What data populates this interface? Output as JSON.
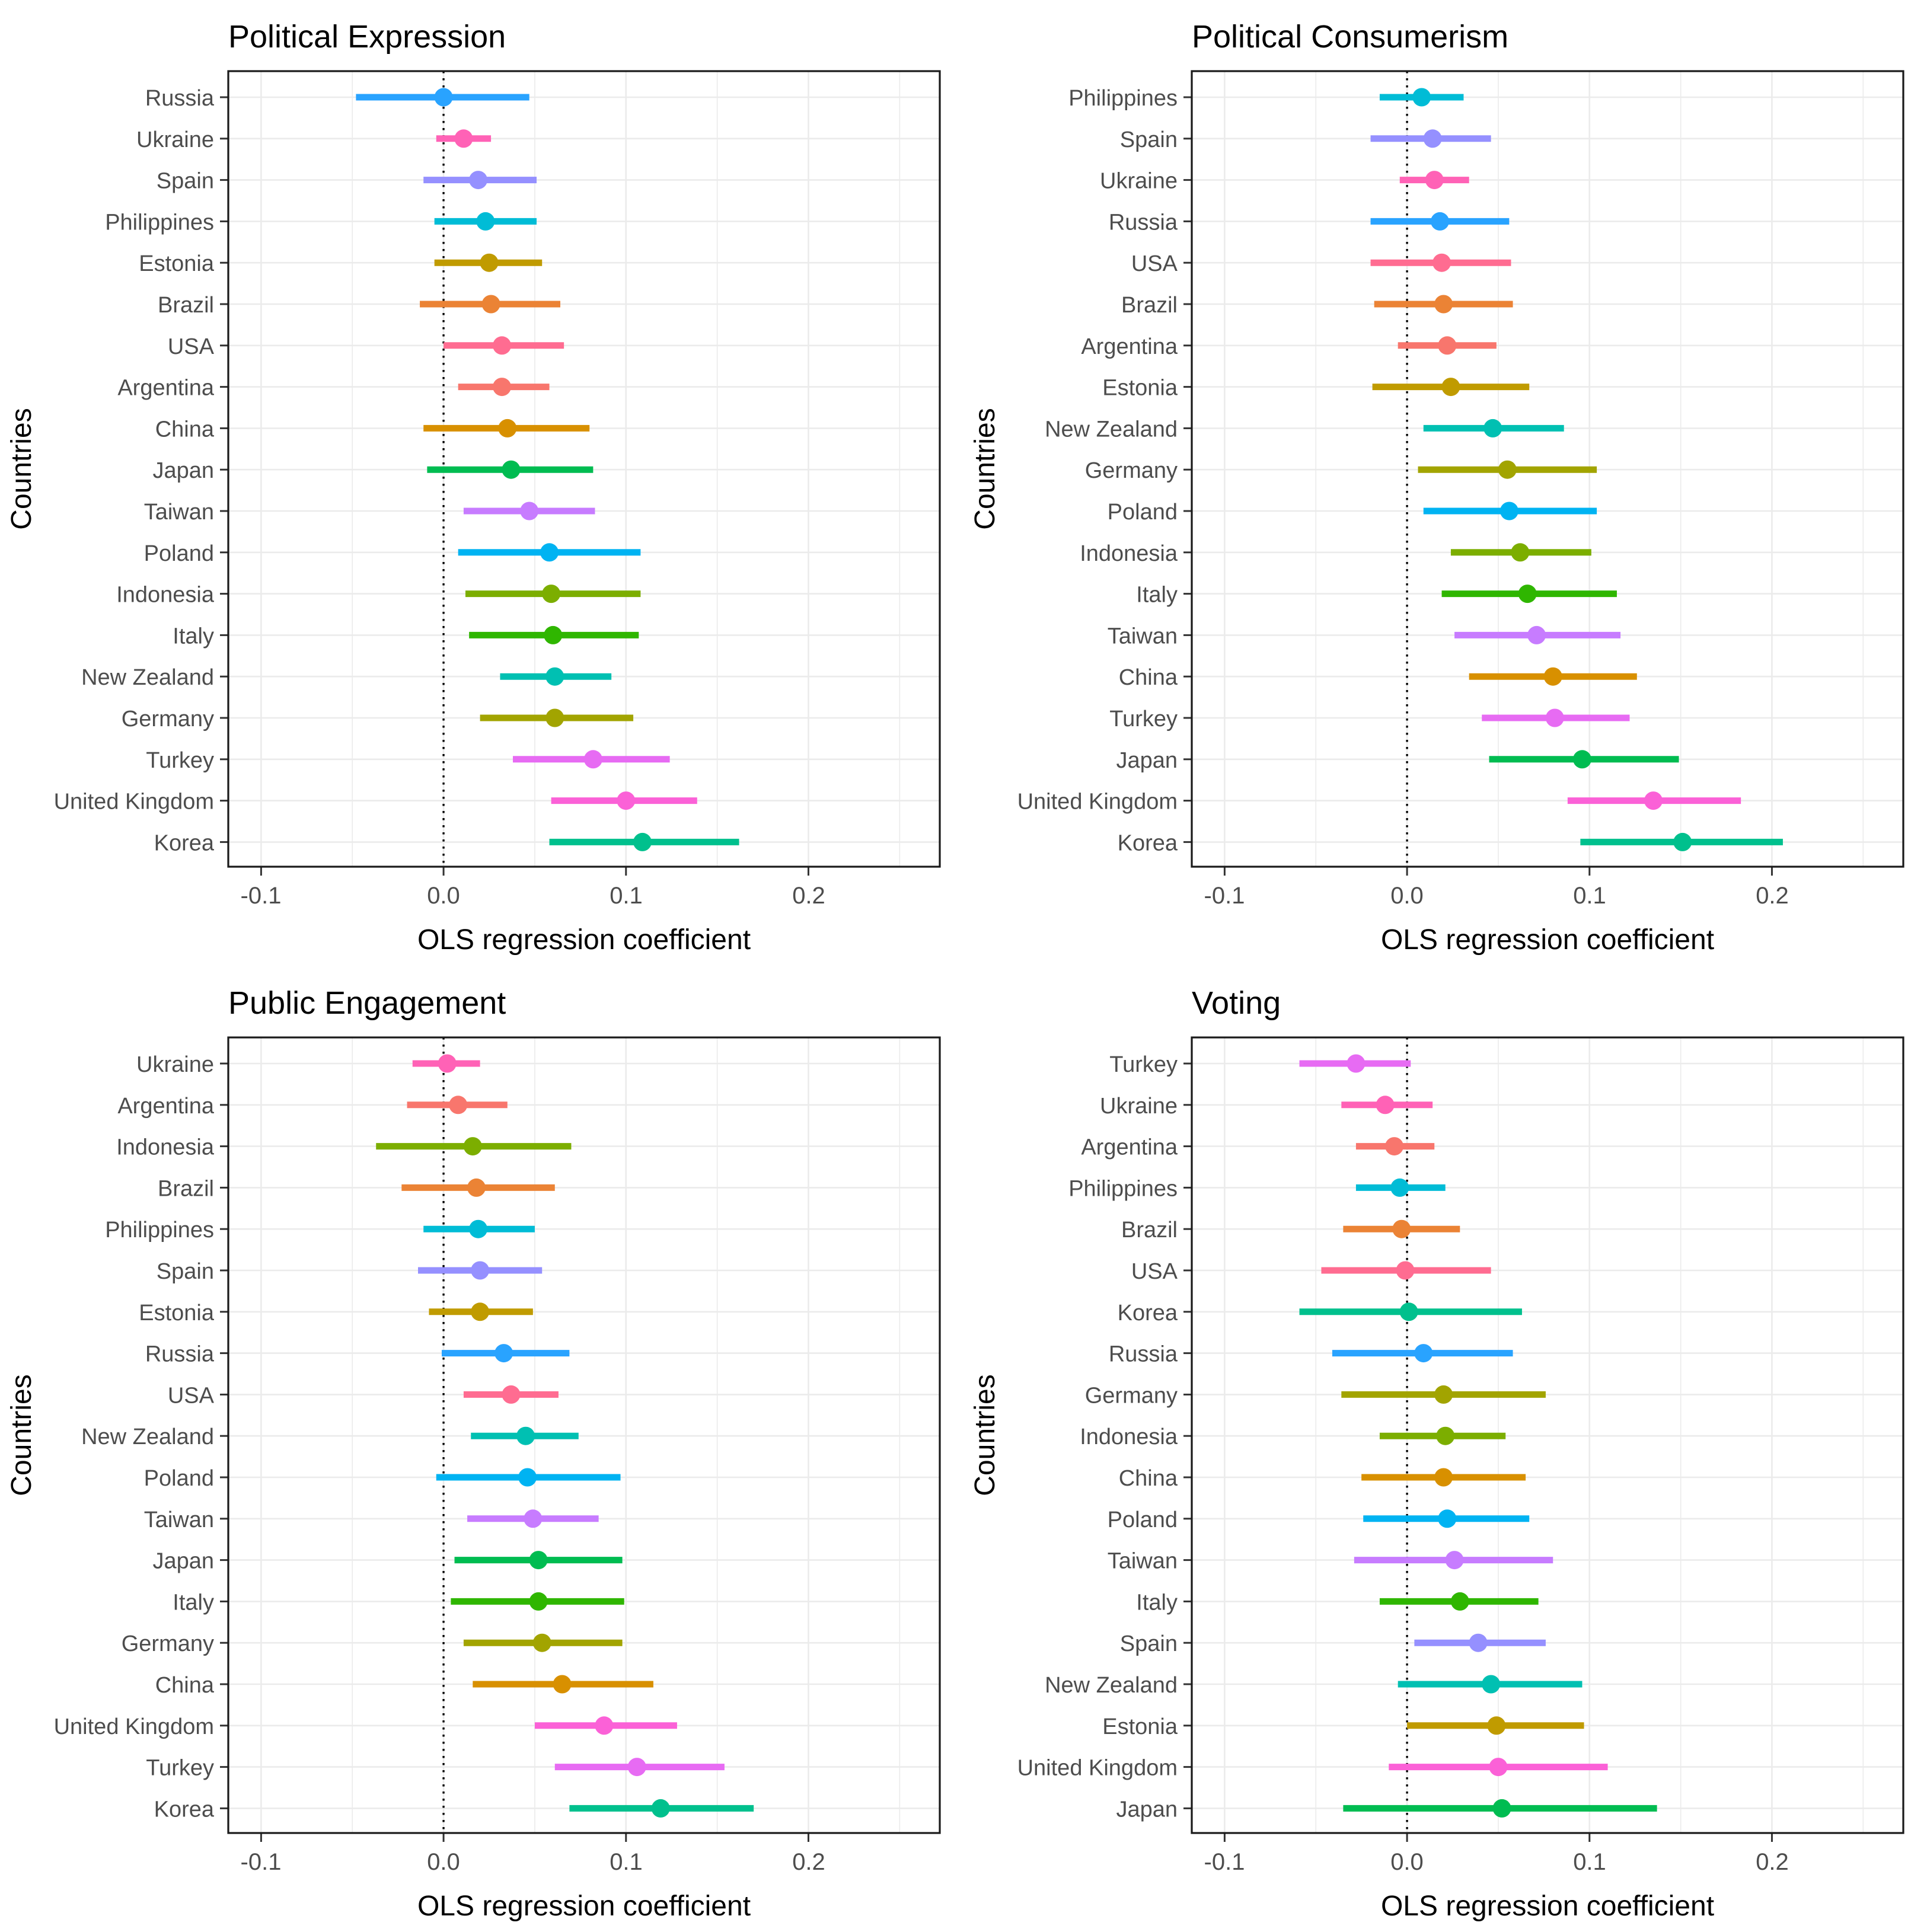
{
  "x_axis": {
    "label": "OLS regression coefficient",
    "ticks": [
      {
        "value": -0.1,
        "label": "-0.1"
      },
      {
        "value": 0.0,
        "label": "0.0"
      },
      {
        "value": 0.1,
        "label": "0.1"
      },
      {
        "value": 0.2,
        "label": "0.2"
      }
    ],
    "minor_ticks": [
      -0.05,
      0.05,
      0.15,
      0.25
    ],
    "range": [
      -0.118,
      0.272
    ]
  },
  "y_axis": {
    "label": "Countries"
  },
  "reference_line": 0,
  "style": {
    "grid_color": "#ebebeb",
    "border_color": "#1a1a1a",
    "tick_color": "#333333",
    "label_color": "#4d4d4d",
    "ref_line_color": "#000000"
  },
  "colors": {
    "Argentina": "#F8766D",
    "Brazil": "#EB8335",
    "China": "#D89000",
    "Estonia": "#C09B00",
    "Germany": "#A2A400",
    "Indonesia": "#7CAE00",
    "Italy": "#2FB600",
    "Japan": "#00BC51",
    "Korea": "#00C08D",
    "New Zealand": "#00C0B2",
    "Philippines": "#00BCD6",
    "Poland": "#00B3F2",
    "Russia": "#29A3FF",
    "Spain": "#9590FF",
    "Taiwan": "#C77CFF",
    "Turkey": "#E76BF3",
    "United Kingdom": "#FB61D7",
    "Ukraine": "#FF62B6",
    "USA": "#FF6C91"
  },
  "chart_data": [
    {
      "type": "pointrange",
      "title": "Political Expression",
      "xlabel": "OLS regression coefficient",
      "ylabel": "Countries",
      "xlim": [
        -0.118,
        0.272
      ],
      "x_ticks": [
        -0.1,
        0.0,
        0.1,
        0.2
      ],
      "reference_line": 0,
      "rows": [
        {
          "country": "Russia",
          "estimate": 0.0,
          "ci_low": -0.048,
          "ci_high": 0.047
        },
        {
          "country": "Ukraine",
          "estimate": 0.011,
          "ci_low": -0.004,
          "ci_high": 0.026
        },
        {
          "country": "Spain",
          "estimate": 0.019,
          "ci_low": -0.011,
          "ci_high": 0.051
        },
        {
          "country": "Philippines",
          "estimate": 0.023,
          "ci_low": -0.005,
          "ci_high": 0.051
        },
        {
          "country": "Estonia",
          "estimate": 0.025,
          "ci_low": -0.005,
          "ci_high": 0.054
        },
        {
          "country": "Brazil",
          "estimate": 0.026,
          "ci_low": -0.013,
          "ci_high": 0.064
        },
        {
          "country": "USA",
          "estimate": 0.032,
          "ci_low": 0.0,
          "ci_high": 0.066
        },
        {
          "country": "Argentina",
          "estimate": 0.032,
          "ci_low": 0.008,
          "ci_high": 0.058
        },
        {
          "country": "China",
          "estimate": 0.035,
          "ci_low": -0.011,
          "ci_high": 0.08
        },
        {
          "country": "Japan",
          "estimate": 0.037,
          "ci_low": -0.009,
          "ci_high": 0.082
        },
        {
          "country": "Taiwan",
          "estimate": 0.047,
          "ci_low": 0.011,
          "ci_high": 0.083
        },
        {
          "country": "Poland",
          "estimate": 0.058,
          "ci_low": 0.008,
          "ci_high": 0.108
        },
        {
          "country": "Indonesia",
          "estimate": 0.059,
          "ci_low": 0.012,
          "ci_high": 0.108
        },
        {
          "country": "Italy",
          "estimate": 0.06,
          "ci_low": 0.014,
          "ci_high": 0.107
        },
        {
          "country": "New Zealand",
          "estimate": 0.061,
          "ci_low": 0.031,
          "ci_high": 0.092
        },
        {
          "country": "Germany",
          "estimate": 0.061,
          "ci_low": 0.02,
          "ci_high": 0.104
        },
        {
          "country": "Turkey",
          "estimate": 0.082,
          "ci_low": 0.038,
          "ci_high": 0.124
        },
        {
          "country": "United Kingdom",
          "estimate": 0.1,
          "ci_low": 0.059,
          "ci_high": 0.139
        },
        {
          "country": "Korea",
          "estimate": 0.109,
          "ci_low": 0.058,
          "ci_high": 0.162
        }
      ]
    },
    {
      "type": "pointrange",
      "title": "Political Consumerism",
      "xlabel": "OLS regression coefficient",
      "ylabel": "Countries",
      "xlim": [
        -0.118,
        0.272
      ],
      "x_ticks": [
        -0.1,
        0.0,
        0.1,
        0.2
      ],
      "reference_line": 0,
      "rows": [
        {
          "country": "Philippines",
          "estimate": 0.008,
          "ci_low": -0.015,
          "ci_high": 0.031
        },
        {
          "country": "Spain",
          "estimate": 0.014,
          "ci_low": -0.02,
          "ci_high": 0.046
        },
        {
          "country": "Ukraine",
          "estimate": 0.015,
          "ci_low": -0.004,
          "ci_high": 0.034
        },
        {
          "country": "Russia",
          "estimate": 0.018,
          "ci_low": -0.02,
          "ci_high": 0.056
        },
        {
          "country": "USA",
          "estimate": 0.019,
          "ci_low": -0.02,
          "ci_high": 0.057
        },
        {
          "country": "Brazil",
          "estimate": 0.02,
          "ci_low": -0.018,
          "ci_high": 0.058
        },
        {
          "country": "Argentina",
          "estimate": 0.022,
          "ci_low": -0.005,
          "ci_high": 0.049
        },
        {
          "country": "Estonia",
          "estimate": 0.024,
          "ci_low": -0.019,
          "ci_high": 0.067
        },
        {
          "country": "New Zealand",
          "estimate": 0.047,
          "ci_low": 0.009,
          "ci_high": 0.086
        },
        {
          "country": "Germany",
          "estimate": 0.055,
          "ci_low": 0.006,
          "ci_high": 0.104
        },
        {
          "country": "Poland",
          "estimate": 0.056,
          "ci_low": 0.009,
          "ci_high": 0.104
        },
        {
          "country": "Indonesia",
          "estimate": 0.062,
          "ci_low": 0.024,
          "ci_high": 0.101
        },
        {
          "country": "Italy",
          "estimate": 0.066,
          "ci_low": 0.019,
          "ci_high": 0.115
        },
        {
          "country": "Taiwan",
          "estimate": 0.071,
          "ci_low": 0.026,
          "ci_high": 0.117
        },
        {
          "country": "China",
          "estimate": 0.08,
          "ci_low": 0.034,
          "ci_high": 0.126
        },
        {
          "country": "Turkey",
          "estimate": 0.081,
          "ci_low": 0.041,
          "ci_high": 0.122
        },
        {
          "country": "Japan",
          "estimate": 0.096,
          "ci_low": 0.045,
          "ci_high": 0.149
        },
        {
          "country": "United Kingdom",
          "estimate": 0.135,
          "ci_low": 0.088,
          "ci_high": 0.183
        },
        {
          "country": "Korea",
          "estimate": 0.151,
          "ci_low": 0.095,
          "ci_high": 0.206
        }
      ]
    },
    {
      "type": "pointrange",
      "title": "Public Engagement",
      "xlabel": "OLS regression coefficient",
      "ylabel": "Countries",
      "xlim": [
        -0.118,
        0.272
      ],
      "x_ticks": [
        -0.1,
        0.0,
        0.1,
        0.2
      ],
      "reference_line": 0,
      "rows": [
        {
          "country": "Ukraine",
          "estimate": 0.002,
          "ci_low": -0.017,
          "ci_high": 0.02
        },
        {
          "country": "Argentina",
          "estimate": 0.008,
          "ci_low": -0.02,
          "ci_high": 0.035
        },
        {
          "country": "Indonesia",
          "estimate": 0.016,
          "ci_low": -0.037,
          "ci_high": 0.07
        },
        {
          "country": "Brazil",
          "estimate": 0.018,
          "ci_low": -0.023,
          "ci_high": 0.061
        },
        {
          "country": "Philippines",
          "estimate": 0.019,
          "ci_low": -0.011,
          "ci_high": 0.05
        },
        {
          "country": "Spain",
          "estimate": 0.02,
          "ci_low": -0.014,
          "ci_high": 0.054
        },
        {
          "country": "Estonia",
          "estimate": 0.02,
          "ci_low": -0.008,
          "ci_high": 0.049
        },
        {
          "country": "Russia",
          "estimate": 0.033,
          "ci_low": -0.001,
          "ci_high": 0.069
        },
        {
          "country": "USA",
          "estimate": 0.037,
          "ci_low": 0.011,
          "ci_high": 0.063
        },
        {
          "country": "New Zealand",
          "estimate": 0.045,
          "ci_low": 0.015,
          "ci_high": 0.074
        },
        {
          "country": "Poland",
          "estimate": 0.046,
          "ci_low": -0.004,
          "ci_high": 0.097
        },
        {
          "country": "Taiwan",
          "estimate": 0.049,
          "ci_low": 0.013,
          "ci_high": 0.085
        },
        {
          "country": "Japan",
          "estimate": 0.052,
          "ci_low": 0.006,
          "ci_high": 0.098
        },
        {
          "country": "Italy",
          "estimate": 0.052,
          "ci_low": 0.004,
          "ci_high": 0.099
        },
        {
          "country": "Germany",
          "estimate": 0.054,
          "ci_low": 0.011,
          "ci_high": 0.098
        },
        {
          "country": "China",
          "estimate": 0.065,
          "ci_low": 0.016,
          "ci_high": 0.115
        },
        {
          "country": "United Kingdom",
          "estimate": 0.088,
          "ci_low": 0.05,
          "ci_high": 0.128
        },
        {
          "country": "Turkey",
          "estimate": 0.106,
          "ci_low": 0.061,
          "ci_high": 0.154
        },
        {
          "country": "Korea",
          "estimate": 0.119,
          "ci_low": 0.069,
          "ci_high": 0.17
        }
      ]
    },
    {
      "type": "pointrange",
      "title": "Voting",
      "xlabel": "OLS regression coefficient",
      "ylabel": "Countries",
      "xlim": [
        -0.118,
        0.272
      ],
      "x_ticks": [
        -0.1,
        0.0,
        0.1,
        0.2
      ],
      "reference_line": 0,
      "rows": [
        {
          "country": "Turkey",
          "estimate": -0.028,
          "ci_low": -0.059,
          "ci_high": 0.002
        },
        {
          "country": "Ukraine",
          "estimate": -0.012,
          "ci_low": -0.036,
          "ci_high": 0.014
        },
        {
          "country": "Argentina",
          "estimate": -0.007,
          "ci_low": -0.028,
          "ci_high": 0.015
        },
        {
          "country": "Philippines",
          "estimate": -0.004,
          "ci_low": -0.028,
          "ci_high": 0.021
        },
        {
          "country": "Brazil",
          "estimate": -0.003,
          "ci_low": -0.035,
          "ci_high": 0.029
        },
        {
          "country": "USA",
          "estimate": -0.001,
          "ci_low": -0.047,
          "ci_high": 0.046
        },
        {
          "country": "Korea",
          "estimate": 0.001,
          "ci_low": -0.059,
          "ci_high": 0.063
        },
        {
          "country": "Russia",
          "estimate": 0.009,
          "ci_low": -0.041,
          "ci_high": 0.058
        },
        {
          "country": "Germany",
          "estimate": 0.02,
          "ci_low": -0.036,
          "ci_high": 0.076
        },
        {
          "country": "Indonesia",
          "estimate": 0.021,
          "ci_low": -0.015,
          "ci_high": 0.054
        },
        {
          "country": "China",
          "estimate": 0.02,
          "ci_low": -0.025,
          "ci_high": 0.065
        },
        {
          "country": "Poland",
          "estimate": 0.022,
          "ci_low": -0.024,
          "ci_high": 0.067
        },
        {
          "country": "Taiwan",
          "estimate": 0.026,
          "ci_low": -0.029,
          "ci_high": 0.08
        },
        {
          "country": "Italy",
          "estimate": 0.029,
          "ci_low": -0.015,
          "ci_high": 0.072
        },
        {
          "country": "Spain",
          "estimate": 0.039,
          "ci_low": 0.004,
          "ci_high": 0.076
        },
        {
          "country": "New Zealand",
          "estimate": 0.046,
          "ci_low": -0.005,
          "ci_high": 0.096
        },
        {
          "country": "Estonia",
          "estimate": 0.049,
          "ci_low": 0.0,
          "ci_high": 0.097
        },
        {
          "country": "United Kingdom",
          "estimate": 0.05,
          "ci_low": -0.01,
          "ci_high": 0.11
        },
        {
          "country": "Japan",
          "estimate": 0.052,
          "ci_low": -0.035,
          "ci_high": 0.137
        }
      ]
    }
  ]
}
